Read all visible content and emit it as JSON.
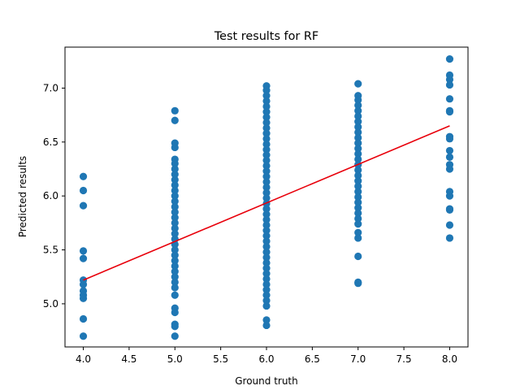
{
  "chart_data": {
    "type": "scatter",
    "title": "Test results for RF",
    "xlabel": "Ground truth",
    "ylabel": "Predicted results",
    "xlim": [
      3.8,
      8.2
    ],
    "ylim": [
      4.6,
      7.38
    ],
    "xticks": [
      "4.0",
      "4.5",
      "5.0",
      "5.5",
      "6.0",
      "6.5",
      "7.0",
      "7.5",
      "8.0"
    ],
    "yticks": [
      "5.0",
      "5.5",
      "6.0",
      "6.5",
      "7.0"
    ],
    "grid": false,
    "colors": {
      "points": "#1f77b4",
      "fit_line": "#e8000b"
    },
    "fit_line": {
      "x": [
        4.0,
        8.0
      ],
      "y": [
        5.22,
        6.65
      ]
    },
    "points": [
      {
        "x": 4.0,
        "y": 6.18
      },
      {
        "x": 4.0,
        "y": 6.05
      },
      {
        "x": 4.0,
        "y": 5.91
      },
      {
        "x": 4.0,
        "y": 5.49
      },
      {
        "x": 4.0,
        "y": 5.42
      },
      {
        "x": 4.0,
        "y": 5.22
      },
      {
        "x": 4.0,
        "y": 5.18
      },
      {
        "x": 4.0,
        "y": 5.12
      },
      {
        "x": 4.0,
        "y": 5.08
      },
      {
        "x": 4.0,
        "y": 5.05
      },
      {
        "x": 4.0,
        "y": 4.86
      },
      {
        "x": 4.0,
        "y": 4.7
      },
      {
        "x": 5.0,
        "y": 6.79
      },
      {
        "x": 5.0,
        "y": 6.7
      },
      {
        "x": 5.0,
        "y": 6.49
      },
      {
        "x": 5.0,
        "y": 6.45
      },
      {
        "x": 5.0,
        "y": 6.34
      },
      {
        "x": 5.0,
        "y": 6.3
      },
      {
        "x": 5.0,
        "y": 6.25
      },
      {
        "x": 5.0,
        "y": 6.2
      },
      {
        "x": 5.0,
        "y": 6.15
      },
      {
        "x": 5.0,
        "y": 6.1
      },
      {
        "x": 5.0,
        "y": 6.05
      },
      {
        "x": 5.0,
        "y": 6.0
      },
      {
        "x": 5.0,
        "y": 5.95
      },
      {
        "x": 5.0,
        "y": 5.9
      },
      {
        "x": 5.0,
        "y": 5.85
      },
      {
        "x": 5.0,
        "y": 5.8
      },
      {
        "x": 5.0,
        "y": 5.75
      },
      {
        "x": 5.0,
        "y": 5.7
      },
      {
        "x": 5.0,
        "y": 5.65
      },
      {
        "x": 5.0,
        "y": 5.6
      },
      {
        "x": 5.0,
        "y": 5.55
      },
      {
        "x": 5.0,
        "y": 5.5
      },
      {
        "x": 5.0,
        "y": 5.45
      },
      {
        "x": 5.0,
        "y": 5.4
      },
      {
        "x": 5.0,
        "y": 5.35
      },
      {
        "x": 5.0,
        "y": 5.3
      },
      {
        "x": 5.0,
        "y": 5.25
      },
      {
        "x": 5.0,
        "y": 5.2
      },
      {
        "x": 5.0,
        "y": 5.15
      },
      {
        "x": 5.0,
        "y": 5.08
      },
      {
        "x": 5.0,
        "y": 4.96
      },
      {
        "x": 5.0,
        "y": 4.92
      },
      {
        "x": 5.0,
        "y": 4.81
      },
      {
        "x": 5.0,
        "y": 4.79
      },
      {
        "x": 5.0,
        "y": 4.7
      },
      {
        "x": 6.0,
        "y": 7.02
      },
      {
        "x": 6.0,
        "y": 6.98
      },
      {
        "x": 6.0,
        "y": 6.93
      },
      {
        "x": 6.0,
        "y": 6.88
      },
      {
        "x": 6.0,
        "y": 6.83
      },
      {
        "x": 6.0,
        "y": 6.78
      },
      {
        "x": 6.0,
        "y": 6.73
      },
      {
        "x": 6.0,
        "y": 6.68
      },
      {
        "x": 6.0,
        "y": 6.63
      },
      {
        "x": 6.0,
        "y": 6.58
      },
      {
        "x": 6.0,
        "y": 6.53
      },
      {
        "x": 6.0,
        "y": 6.48
      },
      {
        "x": 6.0,
        "y": 6.43
      },
      {
        "x": 6.0,
        "y": 6.38
      },
      {
        "x": 6.0,
        "y": 6.33
      },
      {
        "x": 6.0,
        "y": 6.28
      },
      {
        "x": 6.0,
        "y": 6.23
      },
      {
        "x": 6.0,
        "y": 6.18
      },
      {
        "x": 6.0,
        "y": 6.13
      },
      {
        "x": 6.0,
        "y": 6.08
      },
      {
        "x": 6.0,
        "y": 6.03
      },
      {
        "x": 6.0,
        "y": 5.98
      },
      {
        "x": 6.0,
        "y": 5.93
      },
      {
        "x": 6.0,
        "y": 5.88
      },
      {
        "x": 6.0,
        "y": 5.83
      },
      {
        "x": 6.0,
        "y": 5.78
      },
      {
        "x": 6.0,
        "y": 5.73
      },
      {
        "x": 6.0,
        "y": 5.68
      },
      {
        "x": 6.0,
        "y": 5.63
      },
      {
        "x": 6.0,
        "y": 5.58
      },
      {
        "x": 6.0,
        "y": 5.53
      },
      {
        "x": 6.0,
        "y": 5.48
      },
      {
        "x": 6.0,
        "y": 5.43
      },
      {
        "x": 6.0,
        "y": 5.38
      },
      {
        "x": 6.0,
        "y": 5.33
      },
      {
        "x": 6.0,
        "y": 5.28
      },
      {
        "x": 6.0,
        "y": 5.23
      },
      {
        "x": 6.0,
        "y": 5.18
      },
      {
        "x": 6.0,
        "y": 5.13
      },
      {
        "x": 6.0,
        "y": 5.08
      },
      {
        "x": 6.0,
        "y": 5.03
      },
      {
        "x": 6.0,
        "y": 4.98
      },
      {
        "x": 6.0,
        "y": 4.85
      },
      {
        "x": 6.0,
        "y": 4.8
      },
      {
        "x": 7.0,
        "y": 7.04
      },
      {
        "x": 7.0,
        "y": 6.93
      },
      {
        "x": 7.0,
        "y": 6.89
      },
      {
        "x": 7.0,
        "y": 6.84
      },
      {
        "x": 7.0,
        "y": 6.79
      },
      {
        "x": 7.0,
        "y": 6.74
      },
      {
        "x": 7.0,
        "y": 6.69
      },
      {
        "x": 7.0,
        "y": 6.64
      },
      {
        "x": 7.0,
        "y": 6.59
      },
      {
        "x": 7.0,
        "y": 6.54
      },
      {
        "x": 7.0,
        "y": 6.49
      },
      {
        "x": 7.0,
        "y": 6.44
      },
      {
        "x": 7.0,
        "y": 6.39
      },
      {
        "x": 7.0,
        "y": 6.34
      },
      {
        "x": 7.0,
        "y": 6.29
      },
      {
        "x": 7.0,
        "y": 6.24
      },
      {
        "x": 7.0,
        "y": 6.19
      },
      {
        "x": 7.0,
        "y": 6.14
      },
      {
        "x": 7.0,
        "y": 6.09
      },
      {
        "x": 7.0,
        "y": 6.04
      },
      {
        "x": 7.0,
        "y": 5.99
      },
      {
        "x": 7.0,
        "y": 5.94
      },
      {
        "x": 7.0,
        "y": 5.89
      },
      {
        "x": 7.0,
        "y": 5.84
      },
      {
        "x": 7.0,
        "y": 5.79
      },
      {
        "x": 7.0,
        "y": 5.74
      },
      {
        "x": 7.0,
        "y": 5.66
      },
      {
        "x": 7.0,
        "y": 5.61
      },
      {
        "x": 7.0,
        "y": 5.44
      },
      {
        "x": 7.0,
        "y": 5.2
      },
      {
        "x": 7.0,
        "y": 5.19
      },
      {
        "x": 8.0,
        "y": 7.27
      },
      {
        "x": 8.0,
        "y": 7.12
      },
      {
        "x": 8.0,
        "y": 7.08
      },
      {
        "x": 8.0,
        "y": 7.03
      },
      {
        "x": 8.0,
        "y": 6.9
      },
      {
        "x": 8.0,
        "y": 6.79
      },
      {
        "x": 8.0,
        "y": 6.78
      },
      {
        "x": 8.0,
        "y": 6.55
      },
      {
        "x": 8.0,
        "y": 6.53
      },
      {
        "x": 8.0,
        "y": 6.42
      },
      {
        "x": 8.0,
        "y": 6.36
      },
      {
        "x": 8.0,
        "y": 6.29
      },
      {
        "x": 8.0,
        "y": 6.25
      },
      {
        "x": 8.0,
        "y": 6.04
      },
      {
        "x": 8.0,
        "y": 6.0
      },
      {
        "x": 8.0,
        "y": 5.88
      },
      {
        "x": 8.0,
        "y": 5.87
      },
      {
        "x": 8.0,
        "y": 5.73
      },
      {
        "x": 8.0,
        "y": 5.61
      }
    ]
  }
}
